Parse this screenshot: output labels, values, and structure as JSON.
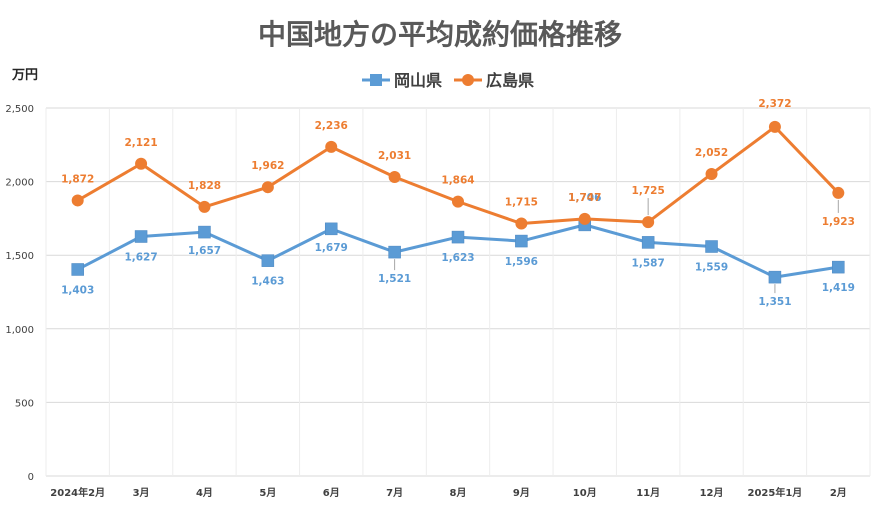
{
  "chart_data": {
    "type": "line",
    "title": "中国地方の平均成約価格推移",
    "ylabel": "万円",
    "xlabel": "",
    "ylim": [
      0,
      2500
    ],
    "yticks": [
      0,
      500,
      1000,
      1500,
      2000,
      2500
    ],
    "ytick_labels": [
      "0",
      "500",
      "1,000",
      "1,500",
      "2,000",
      "2,500"
    ],
    "grid": true,
    "legend_position": "top-center",
    "categories": [
      "2024年2月",
      "3月",
      "4月",
      "5月",
      "6月",
      "7月",
      "8月",
      "9月",
      "10月",
      "11月",
      "12月",
      "2025年1月",
      "2月"
    ],
    "series": [
      {
        "name": "岡山県",
        "color": "#5B9BD5",
        "marker": "square",
        "values": [
          1403,
          1627,
          1657,
          1463,
          1679,
          1521,
          1623,
          1596,
          1706,
          1587,
          1559,
          1351,
          1419
        ],
        "labels": [
          "1,403",
          "1,627",
          "1,657",
          "1,463",
          "1,679",
          "1,521",
          "1,623",
          "1,596",
          "1,706",
          "1,587",
          "1,559",
          "1,351",
          "1,419"
        ]
      },
      {
        "name": "広島県",
        "color": "#ED7D31",
        "marker": "circle",
        "values": [
          1872,
          2121,
          1828,
          1962,
          2236,
          2031,
          1864,
          1715,
          1747,
          1725,
          2052,
          2372,
          1923
        ],
        "labels": [
          "1,872",
          "2,121",
          "1,828",
          "1,962",
          "2,236",
          "2,031",
          "1,864",
          "1,715",
          "1,747",
          "1,725",
          "2,052",
          "2,372",
          "1,923"
        ]
      }
    ]
  }
}
